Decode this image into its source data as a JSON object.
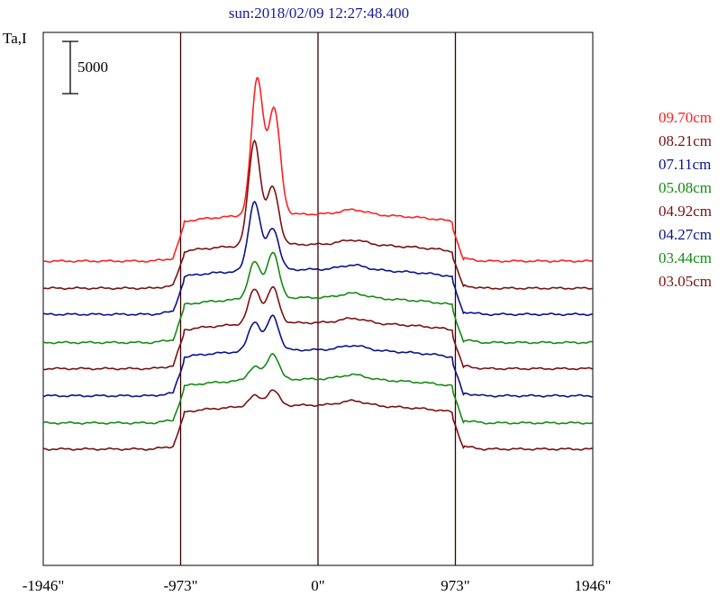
{
  "chart_data": {
    "type": "line",
    "title": "sun:2018/02/09 12:27:48.400",
    "ylabel": "Ta,I",
    "scale_bar_label": "5000",
    "xlim": [
      -1946,
      1946
    ],
    "x_tick_labels": [
      "-1946\"",
      "-973\"",
      "0\"",
      "973\"",
      "1946\""
    ],
    "x_ticks": [
      -1946,
      -973,
      0,
      973,
      1946
    ],
    "vertical_lines": [
      -973,
      0,
      973
    ],
    "grid": false,
    "legend_position": "right",
    "series": [
      {
        "name": "09.70cm",
        "color": "#ff2020",
        "baseline": 0,
        "disk": 4500,
        "plage": [
          [
            -430,
            13000
          ],
          [
            -310,
            10000
          ]
        ]
      },
      {
        "name": "08.21cm",
        "color": "#7b1010",
        "baseline": -2600,
        "disk": 4200,
        "plage": [
          [
            -450,
            10000
          ],
          [
            -320,
            5500
          ]
        ]
      },
      {
        "name": "07.11cm",
        "color": "#0a128c",
        "baseline": -5100,
        "disk": 4300,
        "plage": [
          [
            -450,
            6600
          ],
          [
            -320,
            4000
          ]
        ]
      },
      {
        "name": "05.08cm",
        "color": "#128c12",
        "baseline": -7800,
        "disk": 4300,
        "plage": [
          [
            -450,
            3500
          ],
          [
            -320,
            4400
          ]
        ]
      },
      {
        "name": "04.92cm",
        "color": "#7b1010",
        "baseline": -10300,
        "disk": 4400,
        "plage": [
          [
            -450,
            3300
          ],
          [
            -320,
            3400
          ]
        ]
      },
      {
        "name": "04.27cm",
        "color": "#0a128c",
        "baseline": -12900,
        "disk": 4400,
        "plage": [
          [
            -450,
            2800
          ],
          [
            -320,
            3300
          ]
        ]
      },
      {
        "name": "03.44cm",
        "color": "#128c12",
        "baseline": -15500,
        "disk": 4200,
        "plage": [
          [
            -450,
            1300
          ],
          [
            -320,
            2500
          ]
        ]
      },
      {
        "name": "03.05cm",
        "color": "#7b1010",
        "baseline": -18000,
        "disk": 4200,
        "plage": [
          [
            -450,
            1000
          ],
          [
            -320,
            1500
          ]
        ]
      }
    ]
  }
}
